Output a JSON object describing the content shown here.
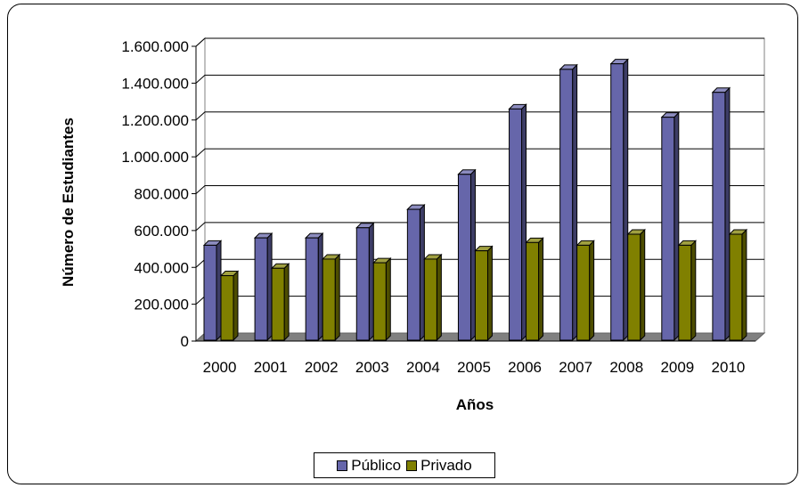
{
  "chart_data": {
    "type": "bar",
    "title": "",
    "xlabel": "Años",
    "ylabel": "Número de Estudiantes",
    "categories": [
      "2000",
      "2001",
      "2002",
      "2003",
      "2004",
      "2005",
      "2006",
      "2007",
      "2008",
      "2009",
      "2010"
    ],
    "series": [
      {
        "name": "Público",
        "color": "#6666aa",
        "values": [
          520000,
          560000,
          560000,
          615000,
          715000,
          905000,
          1260000,
          1475000,
          1505000,
          1215000,
          1350000
        ]
      },
      {
        "name": "Privado",
        "color": "#808000",
        "values": [
          355000,
          395000,
          445000,
          425000,
          445000,
          490000,
          535000,
          520000,
          580000,
          520000,
          580000
        ]
      }
    ],
    "ylim": [
      0,
      1600000
    ],
    "yticks": [
      "0",
      "200.000",
      "400.000",
      "600.000",
      "800.000",
      "1.000.000",
      "1.200.000",
      "1.400.000",
      "1.600.000"
    ],
    "grid": true,
    "legend_position": "bottom"
  }
}
